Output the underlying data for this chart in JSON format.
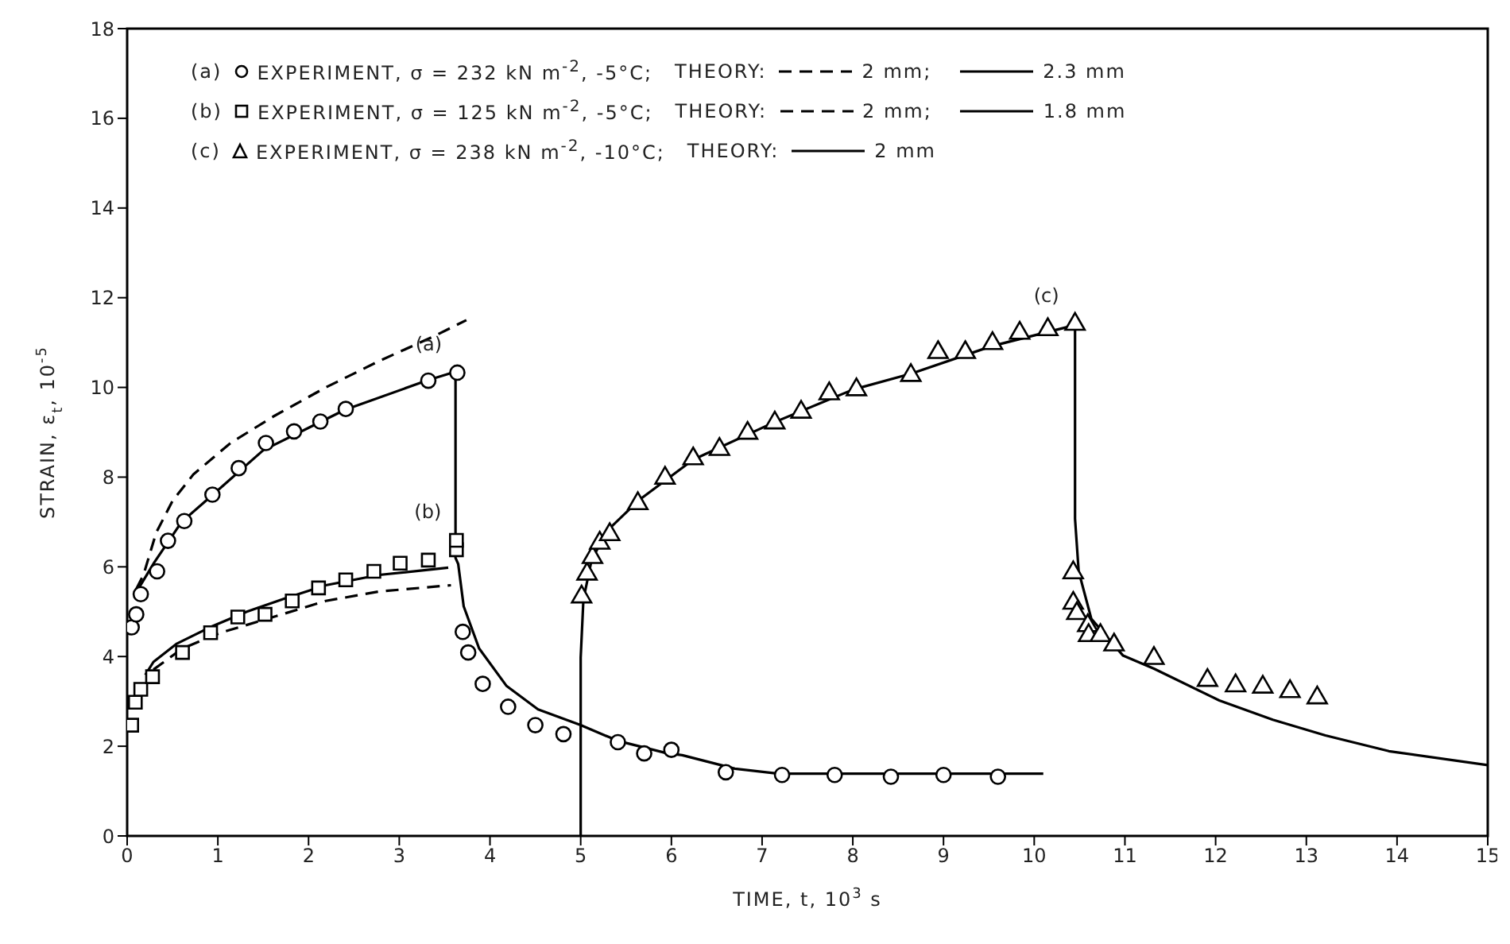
{
  "chart_data": {
    "type": "line",
    "xlabel": "TIME, t, 10$^{3}$ s",
    "ylabel": "STRAIN, ε$_{t}$, 10$^{-5}$",
    "xlim": [
      0,
      15
    ],
    "xticks": [
      0,
      1,
      2,
      3,
      4,
      5,
      6,
      7,
      8,
      9,
      10,
      11,
      12,
      13,
      14,
      15
    ],
    "ylim": [
      0,
      18
    ],
    "yticks": [
      0,
      2,
      4,
      6,
      8,
      10,
      12,
      14,
      16,
      18
    ],
    "grid": false,
    "legend": "top left",
    "series": [
      {
        "name": "EXPERIMENT, σ = 232 kN m$^{-2}$, -5°C;",
        "type": "scatter",
        "marker": "circle",
        "color": "#000000",
        "x": [
          0.05,
          0.1,
          0.15,
          0.33,
          0.45,
          0.63,
          0.94,
          1.23,
          1.53,
          1.84,
          2.13,
          2.41,
          3.32,
          3.64,
          3.7,
          3.76,
          3.92,
          4.2,
          4.5,
          4.81,
          5.41,
          5.7,
          6.0,
          6.6,
          7.22,
          7.8,
          8.42,
          9.0,
          9.6
        ],
        "values": [
          4.65,
          4.94,
          5.39,
          5.9,
          6.58,
          7.02,
          7.61,
          8.2,
          8.76,
          9.02,
          9.24,
          9.52,
          10.15,
          10.33,
          4.55,
          4.09,
          3.39,
          2.88,
          2.47,
          2.27,
          2.09,
          1.84,
          1.92,
          1.42,
          1.36,
          1.36,
          1.32,
          1.36,
          1.32
        ]
      },
      {
        "name": "2 mm;",
        "line_style": "dashed",
        "color": "#000000",
        "x": [
          0.1,
          0.18,
          0.32,
          0.5,
          0.73,
          1.14,
          1.61,
          2.19,
          2.78,
          3.36,
          3.74
        ],
        "values": [
          5.5,
          5.82,
          6.76,
          7.47,
          8.06,
          8.76,
          9.35,
          10.0,
          10.59,
          11.12,
          11.5
        ]
      },
      {
        "name": "2.3 mm",
        "line_style": "solid",
        "color": "#000000",
        "x": [
          0.12,
          0.3,
          0.6,
          0.94,
          1.5,
          2.1,
          2.4,
          3.3,
          3.62,
          3.62,
          3.65,
          3.71,
          3.88,
          4.18,
          4.53,
          5.0,
          5.41,
          5.94,
          6.12,
          6.7,
          7.18,
          10.1
        ],
        "values": [
          5.5,
          6.1,
          7.0,
          7.6,
          8.6,
          9.2,
          9.5,
          10.15,
          10.35,
          6.2,
          6.06,
          5.12,
          4.18,
          3.35,
          2.82,
          2.47,
          2.12,
          1.85,
          1.8,
          1.5,
          1.39,
          1.39
        ]
      },
      {
        "name": "EXPERIMENT, σ = 125 kN m$^{-2}$, -5°C;",
        "type": "scatter",
        "marker": "square",
        "color": "#000000",
        "x": [
          0.05,
          0.09,
          0.15,
          0.28,
          0.61,
          0.92,
          1.22,
          1.52,
          1.82,
          2.11,
          2.41,
          2.72,
          3.01,
          3.32,
          3.63,
          3.63
        ],
        "values": [
          2.47,
          2.98,
          3.27,
          3.55,
          4.09,
          4.53,
          4.88,
          4.94,
          5.24,
          5.53,
          5.71,
          5.9,
          6.08,
          6.15,
          6.38,
          6.59
        ]
      },
      {
        "name": "2 mm;",
        "line_style": "dashed",
        "color": "#000000",
        "x": [
          0.29,
          0.61,
          1.03,
          1.61,
          2.19,
          2.78,
          3.57
        ],
        "values": [
          3.71,
          4.18,
          4.53,
          4.88,
          5.24,
          5.45,
          5.59
        ]
      },
      {
        "name": "1.8 mm",
        "line_style": "solid",
        "color": "#000000",
        "x": [
          0.2,
          0.29,
          0.55,
          0.91,
          1.32,
          1.73,
          2.19,
          2.78,
          3.54
        ],
        "values": [
          3.59,
          3.88,
          4.29,
          4.65,
          5.0,
          5.29,
          5.59,
          5.82,
          5.98
        ]
      },
      {
        "name": "EXPERIMENT, σ = 238 kN m$^{-2}$, -10°C;",
        "type": "scatter",
        "marker": "triangle",
        "color": "#000000",
        "x": [
          5.01,
          5.07,
          5.13,
          5.21,
          5.32,
          5.63,
          5.93,
          6.24,
          6.53,
          6.84,
          7.14,
          7.43,
          7.74,
          8.04,
          8.64,
          8.94,
          9.24,
          9.54,
          9.84,
          10.15,
          10.45,
          10.43,
          10.43,
          10.47,
          10.59,
          10.6,
          10.73,
          10.88,
          11.32,
          11.91,
          12.22,
          12.52,
          12.82,
          13.12
        ],
        "values": [
          5.33,
          5.84,
          6.21,
          6.53,
          6.72,
          7.41,
          7.98,
          8.41,
          8.62,
          8.98,
          9.21,
          9.45,
          9.86,
          9.95,
          10.27,
          10.78,
          10.78,
          10.98,
          11.21,
          11.29,
          11.41,
          5.87,
          5.19,
          4.96,
          4.69,
          4.47,
          4.47,
          4.26,
          3.96,
          3.47,
          3.35,
          3.32,
          3.22,
          3.08
        ]
      },
      {
        "name": "2 mm",
        "line_style": "solid",
        "color": "#000000",
        "x": [
          5,
          5,
          5.03,
          5.12,
          5.29,
          5.65,
          6.24,
          7.12,
          8.0,
          8.65,
          9.53,
          10.45,
          10.45,
          10.49,
          10.63,
          10.98,
          11.32,
          12.04,
          12.63,
          13.21,
          13.91,
          15
        ],
        "values": [
          0,
          3.98,
          5.27,
          6.15,
          6.8,
          7.5,
          8.39,
          9.21,
          9.95,
          10.31,
          10.92,
          11.39,
          7.07,
          5.9,
          4.84,
          4.02,
          3.73,
          3.02,
          2.59,
          2.24,
          1.89,
          1.58
        ]
      }
    ],
    "annotations": [
      "(a)",
      "(b)",
      "(c)",
      "THEORY:",
      "THEORY:",
      "THEORY:",
      "(a)",
      "(b)",
      "(c)"
    ]
  }
}
